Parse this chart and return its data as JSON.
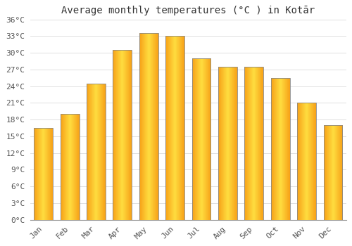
{
  "title": "Average monthly temperatures (°C ) in Kotār",
  "categories": [
    "Jan",
    "Feb",
    "Mar",
    "Apr",
    "May",
    "Jun",
    "Jul",
    "Aug",
    "Sep",
    "Oct",
    "Nov",
    "Dec"
  ],
  "values": [
    16.5,
    19.0,
    24.5,
    30.5,
    33.5,
    33.0,
    29.0,
    27.5,
    27.5,
    25.5,
    21.0,
    17.0
  ],
  "bar_color_center": "#FFD740",
  "bar_color_edge_dark": "#F5A623",
  "bar_border_color": "#888888",
  "ylim": [
    0,
    36
  ],
  "yticks": [
    0,
    3,
    6,
    9,
    12,
    15,
    18,
    21,
    24,
    27,
    30,
    33,
    36
  ],
  "ytick_labels": [
    "0°C",
    "3°C",
    "6°C",
    "9°C",
    "12°C",
    "15°C",
    "18°C",
    "21°C",
    "24°C",
    "27°C",
    "30°C",
    "33°C",
    "36°C"
  ],
  "background_color": "#ffffff",
  "grid_color": "#e0e0e0",
  "title_fontsize": 10,
  "tick_fontsize": 8,
  "font_family": "monospace"
}
